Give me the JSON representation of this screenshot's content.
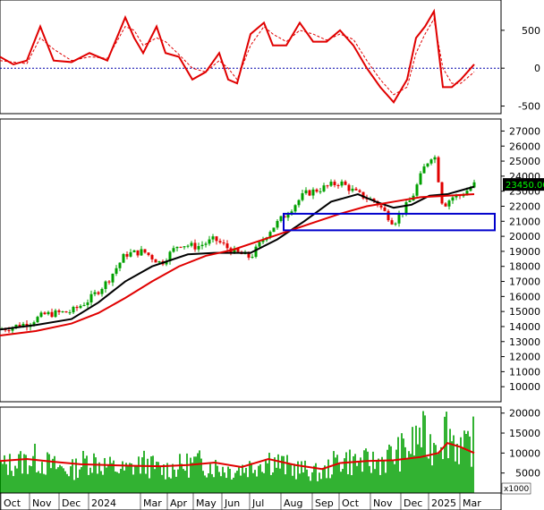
{
  "chart_data": [
    {
      "type": "line",
      "panel": "oscillator",
      "ylim": [
        -600,
        900
      ],
      "yticks": [
        "500",
        "0",
        "-500"
      ],
      "ytick_values": [
        500,
        0,
        -500
      ],
      "zero_line": 0,
      "series": [
        {
          "color": "#e00000",
          "style": "solid",
          "x": [
            0,
            15,
            30,
            45,
            60,
            80,
            100,
            120,
            140,
            150,
            160,
            175,
            185,
            200,
            215,
            230,
            245,
            255,
            265,
            280,
            295,
            305,
            320,
            335,
            350,
            365,
            380,
            395,
            410,
            425,
            440,
            455,
            465,
            475,
            485,
            495,
            505,
            515,
            530
          ],
          "values": [
            150,
            50,
            100,
            550,
            100,
            80,
            200,
            100,
            670,
            400,
            200,
            550,
            200,
            150,
            -150,
            -50,
            200,
            -150,
            -200,
            450,
            600,
            300,
            300,
            600,
            350,
            350,
            500,
            300,
            0,
            -250,
            -450,
            -150,
            400,
            550,
            750,
            -250,
            -250,
            -150,
            50
          ]
        },
        {
          "color": "#e00000",
          "style": "dashed",
          "x": [
            0,
            15,
            30,
            45,
            60,
            80,
            100,
            120,
            140,
            150,
            160,
            175,
            185,
            200,
            215,
            230,
            245,
            255,
            265,
            280,
            295,
            305,
            320,
            335,
            350,
            365,
            380,
            395,
            410,
            425,
            440,
            455,
            465,
            475,
            485,
            495,
            505,
            515,
            530
          ],
          "values": [
            100,
            80,
            60,
            400,
            250,
            100,
            150,
            130,
            550,
            500,
            300,
            400,
            350,
            180,
            0,
            -50,
            100,
            0,
            -150,
            300,
            550,
            450,
            350,
            500,
            450,
            370,
            450,
            380,
            100,
            -150,
            -350,
            -250,
            200,
            450,
            650,
            0,
            -200,
            -200,
            -50
          ]
        }
      ]
    },
    {
      "type": "candlestick",
      "panel": "price",
      "ylim": [
        9000,
        27800
      ],
      "yticks": [
        "27000",
        "26000",
        "25000",
        "24000",
        "23000",
        "22000",
        "21000",
        "20000",
        "19000",
        "18000",
        "17000",
        "16000",
        "15000",
        "14000",
        "13000",
        "12000",
        "11000",
        "10000"
      ],
      "ytick_values": [
        27000,
        26000,
        25000,
        24000,
        23000,
        22000,
        21000,
        20000,
        19000,
        18000,
        17000,
        16000,
        15000,
        14000,
        13000,
        12000,
        11000,
        10000
      ],
      "last_price_label": "23450.00",
      "last_price": 23450,
      "candle_up_color": "#00a000",
      "candle_down_color": "#e00000",
      "close_x": [
        0,
        30,
        50,
        80,
        100,
        120,
        140,
        160,
        180,
        200,
        220,
        240,
        260,
        280,
        300,
        320,
        340,
        360,
        380,
        400,
        420,
        440,
        460,
        475,
        485,
        495,
        505,
        515,
        530
      ],
      "close": [
        13800,
        14200,
        14800,
        15000,
        15800,
        17000,
        18800,
        19000,
        18200,
        19500,
        19300,
        19800,
        19000,
        18600,
        20300,
        21500,
        22800,
        23200,
        23600,
        22800,
        22300,
        20900,
        22500,
        24700,
        25600,
        22000,
        22600,
        22700,
        23450
      ],
      "series": [
        {
          "name": "",
          "color": "#000000",
          "x": [
            0,
            40,
            80,
            110,
            140,
            170,
            210,
            240,
            280,
            310,
            340,
            370,
            400,
            420,
            440,
            460,
            480,
            500,
            530
          ],
          "values": [
            13800,
            14100,
            14500,
            15600,
            17000,
            18000,
            18800,
            18900,
            18900,
            19800,
            21000,
            22300,
            22800,
            22300,
            21900,
            22100,
            22700,
            22800,
            23300
          ]
        },
        {
          "name": "",
          "color": "#e00000",
          "x": [
            0,
            40,
            80,
            110,
            140,
            170,
            200,
            230,
            260,
            290,
            320,
            350,
            380,
            410,
            440,
            470,
            500,
            530
          ],
          "values": [
            13400,
            13700,
            14200,
            14900,
            15900,
            17000,
            18000,
            18700,
            19100,
            19700,
            20300,
            20900,
            21500,
            22000,
            22300,
            22600,
            22700,
            22800
          ]
        }
      ],
      "annotation_box": {
        "x0": 317,
        "x1": 553,
        "y_low": 20400,
        "y_high": 21500,
        "color": "#0000cc"
      }
    },
    {
      "type": "bar",
      "panel": "volume",
      "ylim": [
        0,
        21500
      ],
      "yticks": [
        "20000",
        "15000",
        "10000",
        "5000"
      ],
      "ytick_values": [
        20000,
        15000,
        10000,
        5000
      ],
      "unit_label": "x1000",
      "bar_color": "#00a000",
      "volume_x": [
        0,
        20,
        40,
        60,
        80,
        100,
        120,
        140,
        160,
        180,
        200,
        220,
        240,
        260,
        280,
        300,
        320,
        340,
        360,
        380,
        400,
        420,
        440,
        460,
        470,
        480,
        490,
        500,
        510,
        520,
        530
      ],
      "volume": [
        7000,
        8000,
        9000,
        7000,
        6000,
        9000,
        7000,
        6000,
        8000,
        6000,
        7000,
        8000,
        7000,
        6000,
        7000,
        9000,
        7000,
        6000,
        5000,
        9000,
        8000,
        8000,
        10000,
        12000,
        16000,
        12000,
        15000,
        17000,
        13000,
        11000,
        14000
      ],
      "series": [
        {
          "name": "",
          "color": "#e00000",
          "x": [
            0,
            30,
            60,
            90,
            120,
            150,
            180,
            210,
            240,
            270,
            300,
            330,
            360,
            380,
            410,
            440,
            470,
            490,
            500,
            515,
            530
          ],
          "values": [
            8000,
            8500,
            7800,
            7200,
            7000,
            6800,
            6700,
            7000,
            7600,
            6500,
            8500,
            7000,
            6000,
            7500,
            8000,
            8200,
            9000,
            10000,
            12500,
            11500,
            10000
          ]
        }
      ]
    }
  ],
  "x_axis": {
    "months": [
      "Oct",
      "Nov",
      "Dec",
      "2024",
      "Mar",
      "Apr",
      "May",
      "Jun",
      "Jul",
      "Aug",
      "Sep",
      "Oct",
      "Nov",
      "Dec",
      "2025",
      "Mar"
    ],
    "month_x": [
      7,
      39,
      72,
      105,
      163,
      193,
      222,
      254,
      285,
      320,
      355,
      385,
      420,
      454,
      485,
      520
    ]
  }
}
